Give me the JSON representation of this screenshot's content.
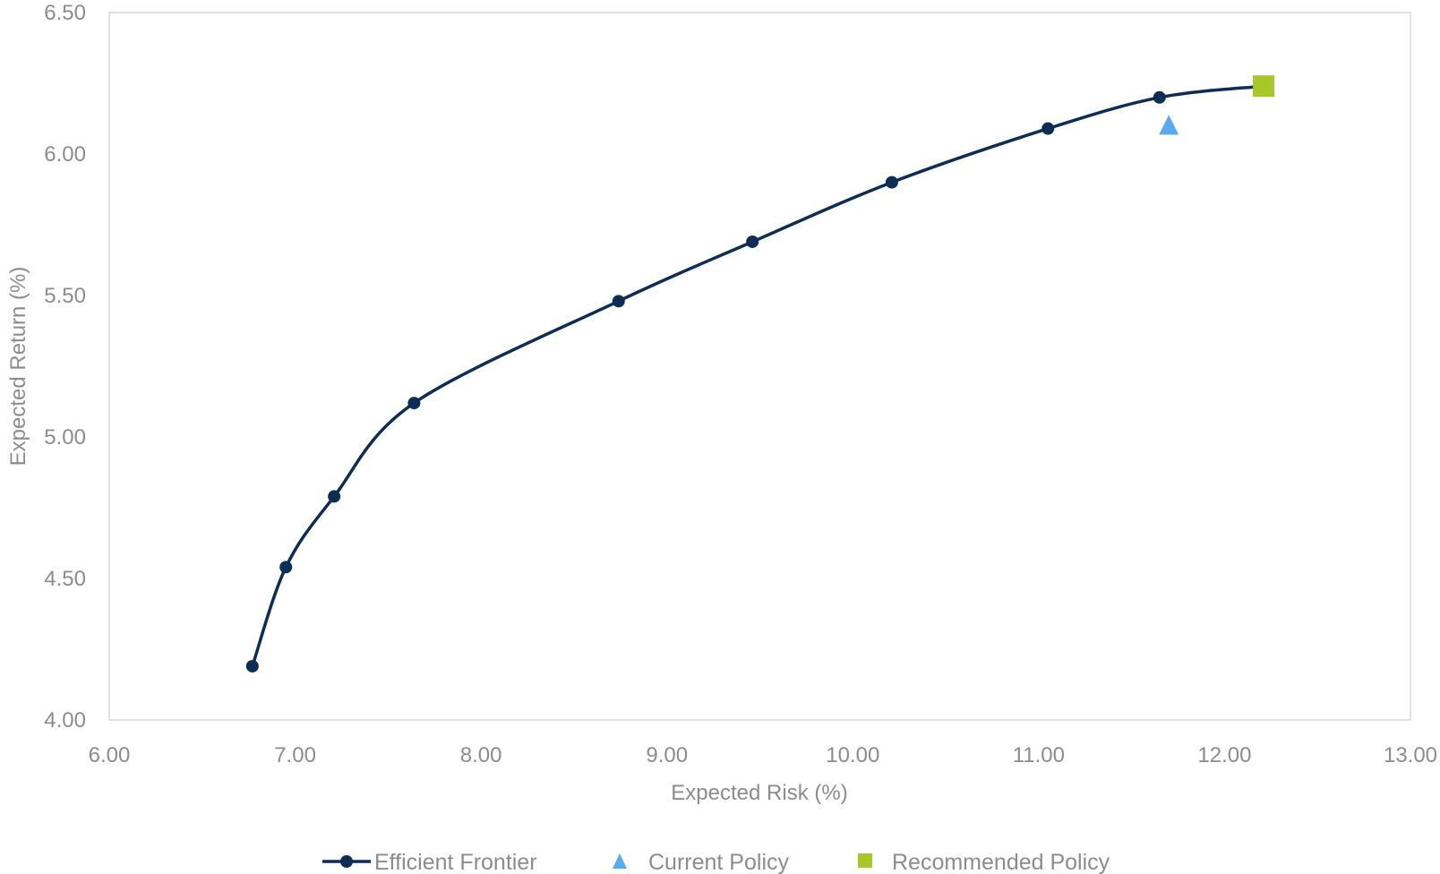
{
  "chart_data": {
    "type": "scatter",
    "title": "",
    "xlabel": "Expected Risk (%)",
    "ylabel": "Expected Return (%)",
    "xlim": [
      6.0,
      13.0
    ],
    "ylim": [
      4.0,
      6.5
    ],
    "x_ticks": [
      "6.00",
      "7.00",
      "8.00",
      "9.00",
      "10.00",
      "11.00",
      "12.00",
      "13.00"
    ],
    "y_ticks": [
      "4.00",
      "4.50",
      "5.00",
      "5.50",
      "6.00",
      "6.50"
    ],
    "grid": false,
    "legend_position": "bottom",
    "series": [
      {
        "name": "Efficient Frontier",
        "mark": "line-with-circles",
        "color": "#0d2d55",
        "x": [
          6.77,
          6.95,
          7.21,
          7.64,
          8.74,
          9.46,
          10.21,
          11.05,
          11.65,
          12.21
        ],
        "y": [
          4.19,
          4.54,
          4.79,
          5.12,
          5.48,
          5.69,
          5.9,
          6.09,
          6.2,
          6.24
        ]
      },
      {
        "name": "Current Policy",
        "mark": "triangle",
        "color": "#5aabee",
        "x": [
          11.7
        ],
        "y": [
          6.1
        ]
      },
      {
        "name": "Recommended Policy",
        "mark": "square",
        "color": "#a8c82a",
        "x": [
          12.21
        ],
        "y": [
          6.24
        ]
      }
    ]
  }
}
